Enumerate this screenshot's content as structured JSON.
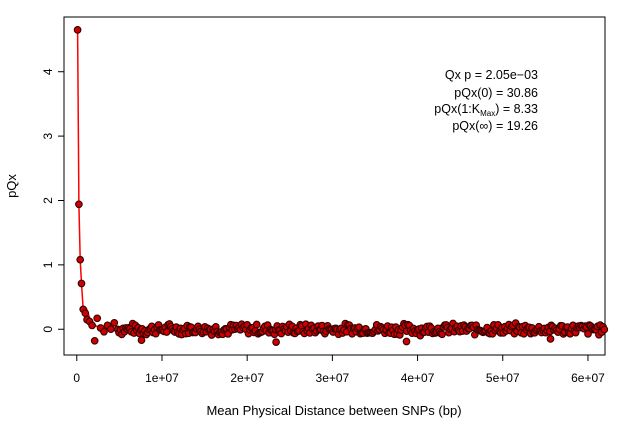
{
  "chart_data": {
    "type": "scatter",
    "xlabel": "Mean Physical Distance between SNPs (bp)",
    "ylabel": "pQx",
    "xlim": [
      -1500000,
      62000000
    ],
    "ylim": [
      -0.4,
      4.85
    ],
    "x_ticks": [
      0,
      10000000,
      20000000,
      30000000,
      40000000,
      50000000,
      60000000
    ],
    "x_tick_labels": [
      "0",
      "1e+07",
      "2e+07",
      "3e+07",
      "4e+07",
      "5e+07",
      "6e+07"
    ],
    "y_ticks": [
      0,
      1,
      2,
      3,
      4
    ],
    "y_tick_labels": [
      "0",
      "1",
      "2",
      "3",
      "4"
    ],
    "grid": false,
    "legend": "none",
    "colors": {
      "marker_fill": "#cc0000",
      "marker_edge": "#330000",
      "smooth_line": "#ff0000"
    },
    "annotations": {
      "line1": "Qx p = 2.05e−03",
      "line2": "pQx(0) = 30.86",
      "line3_prefix": "pQx(1:K",
      "line3_sub": "Max",
      "line3_suffix": ") = 8.33",
      "line4": "pQx(∞) = 19.26"
    },
    "points_head": [
      [
        100000,
        4.65
      ],
      [
        250000,
        1.94
      ],
      [
        400000,
        1.08
      ],
      [
        550000,
        0.71
      ],
      [
        750000,
        0.31
      ],
      [
        1000000,
        0.25
      ],
      [
        1200000,
        0.15
      ],
      [
        1500000,
        0.12
      ],
      [
        1800000,
        0.06
      ],
      [
        2100000,
        -0.18
      ],
      [
        2400000,
        0.17
      ],
      [
        2800000,
        0.02
      ],
      [
        3200000,
        -0.04
      ],
      [
        3600000,
        0.06
      ],
      [
        4000000,
        0.0
      ],
      [
        4400000,
        0.1
      ]
    ],
    "tail": {
      "x_start": 4800000,
      "x_end": 62000000,
      "step": 160000,
      "baseline": 0.0,
      "spread": 0.1,
      "low_outliers": [
        [
          7600000,
          -0.17
        ],
        [
          23400000,
          -0.2
        ],
        [
          38700000,
          -0.19
        ],
        [
          55600000,
          -0.15
        ]
      ]
    }
  }
}
